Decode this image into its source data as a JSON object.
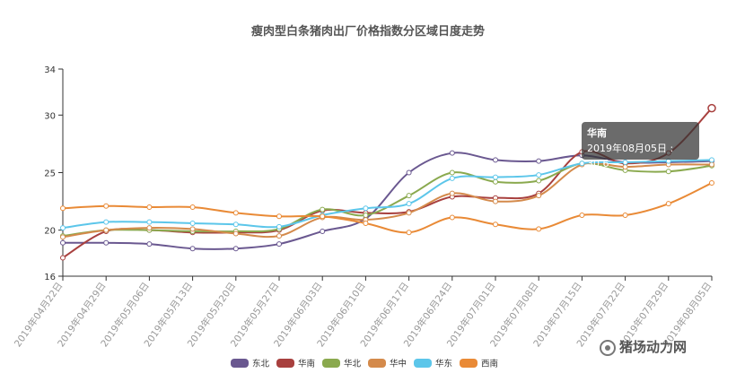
{
  "chart_data": {
    "type": "line",
    "title": "瘦肉型白条猪肉出厂价格指数分区域日度走势",
    "xlabel": "",
    "ylabel": "",
    "ylim": [
      16,
      34
    ],
    "yticks": [
      16,
      20,
      25,
      30,
      34
    ],
    "x": [
      "2019年04月22日",
      "2019年04月29日",
      "2019年05月06日",
      "2019年05月13日",
      "2019年05月20日",
      "2019年05月27日",
      "2019年06月03日",
      "2019年06月10日",
      "2019年06月17日",
      "2019年06月24日",
      "2019年07月01日",
      "2019年07月08日",
      "2019年07月15日",
      "2019年07月22日",
      "2019年07月29日",
      "2019年08月05日"
    ],
    "legend_position": "bottom-center",
    "grid": false,
    "series": [
      {
        "name": "东北",
        "color": "#6a5890",
        "values": [
          18.9,
          18.9,
          18.8,
          18.4,
          18.4,
          18.8,
          19.9,
          21.0,
          25.0,
          26.7,
          26.1,
          26.0,
          26.5,
          25.9,
          25.9,
          26.0
        ]
      },
      {
        "name": "华南",
        "color": "#a8403e",
        "values": [
          17.6,
          19.9,
          20.0,
          19.8,
          19.8,
          20.0,
          21.7,
          21.5,
          21.6,
          22.9,
          22.8,
          23.2,
          26.8,
          25.8,
          26.7,
          30.6
        ]
      },
      {
        "name": "华北",
        "color": "#8aa94e",
        "values": [
          19.5,
          20.0,
          20.0,
          19.9,
          19.9,
          20.1,
          21.8,
          21.3,
          23.0,
          25.0,
          24.2,
          24.3,
          25.8,
          25.2,
          25.1,
          25.6
        ]
      },
      {
        "name": "华中",
        "color": "#d48a4b",
        "values": [
          19.4,
          20.0,
          20.2,
          20.1,
          19.7,
          19.5,
          21.1,
          20.9,
          21.5,
          23.2,
          22.5,
          23.0,
          25.7,
          25.5,
          25.7,
          25.7
        ]
      },
      {
        "name": "华东",
        "color": "#5cc6ea",
        "values": [
          20.2,
          20.7,
          20.7,
          20.6,
          20.5,
          20.3,
          21.3,
          21.9,
          22.3,
          24.5,
          24.6,
          24.8,
          25.8,
          25.9,
          26.0,
          26.1
        ]
      },
      {
        "name": "西南",
        "color": "#e98a36",
        "values": [
          21.9,
          22.1,
          22.0,
          22.0,
          21.5,
          21.2,
          21.2,
          20.6,
          19.8,
          21.1,
          20.5,
          20.1,
          21.3,
          21.3,
          22.3,
          24.1
        ]
      }
    ],
    "tooltip": {
      "title": "华南",
      "text": "2019年08月05日 : 30.6"
    }
  },
  "watermark": {
    "text": "猪场动力网",
    "icon": "wechat-icon"
  }
}
